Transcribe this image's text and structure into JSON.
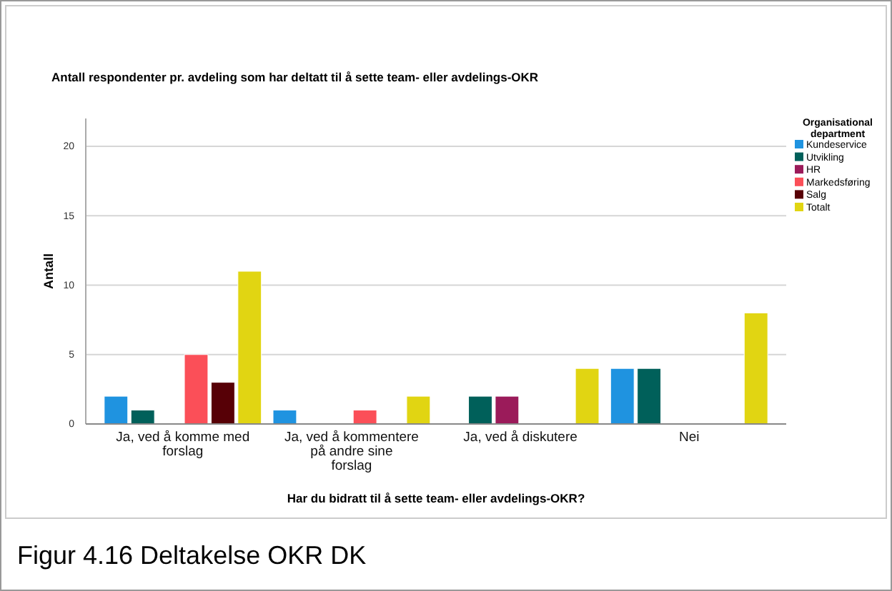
{
  "chart_data": {
    "type": "bar",
    "title": "Antall respondenter pr. avdeling som har deltatt til å sette team- eller avdelings-OKR",
    "xlabel": "Har du bidratt til å sette team- eller avdelings-OKR?",
    "ylabel": "Antall",
    "legend_title": "Organisational department",
    "categories": [
      "Ja, ved å komme med forslag",
      "Ja, ved å kommentere på andre sine forslag",
      "Ja, ved å diskutere",
      "Nei"
    ],
    "series": [
      {
        "name": "Kundeservice",
        "color": "#1f93e0",
        "values": [
          2,
          1,
          null,
          4
        ]
      },
      {
        "name": "Utvikling",
        "color": "#00605a",
        "values": [
          1,
          null,
          2,
          4
        ]
      },
      {
        "name": "HR",
        "color": "#9b1b5a",
        "values": [
          null,
          null,
          2,
          null
        ]
      },
      {
        "name": "Markedsføring",
        "color": "#fb4f58",
        "values": [
          5,
          1,
          null,
          null
        ]
      },
      {
        "name": "Salg",
        "color": "#570006",
        "values": [
          3,
          null,
          null,
          null
        ]
      },
      {
        "name": "Totalt",
        "color": "#e1d512",
        "values": [
          11,
          2,
          4,
          8
        ]
      }
    ],
    "ylim": [
      0,
      22
    ],
    "yticks": [
      0,
      5,
      10,
      15,
      20
    ],
    "grid": "y",
    "legend": "top right",
    "annotations": [
      "Figur 4.16 Deltakelse OKR DK"
    ]
  }
}
